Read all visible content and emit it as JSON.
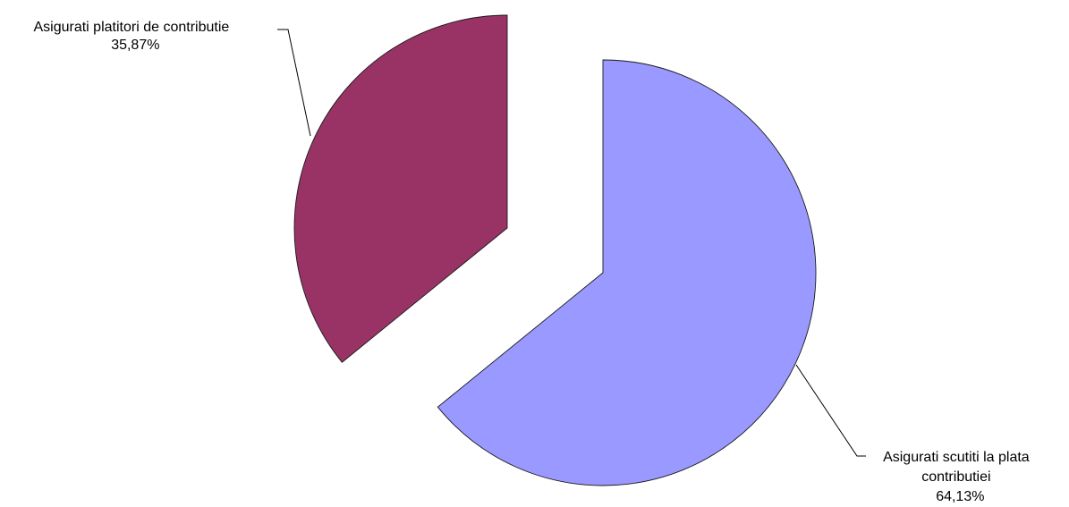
{
  "chart_data": {
    "type": "pie",
    "exploded": true,
    "slices": [
      {
        "label_lines": [
          "Asigurati scutiti la plata",
          "contributiei"
        ],
        "value": 64.13,
        "value_label": "64,13%",
        "color": "#9999ff"
      },
      {
        "label_lines": [
          "Asigurati platitori de contributie"
        ],
        "value": 35.87,
        "value_label": "35,87%",
        "color": "#993366"
      }
    ],
    "legend": "none"
  }
}
